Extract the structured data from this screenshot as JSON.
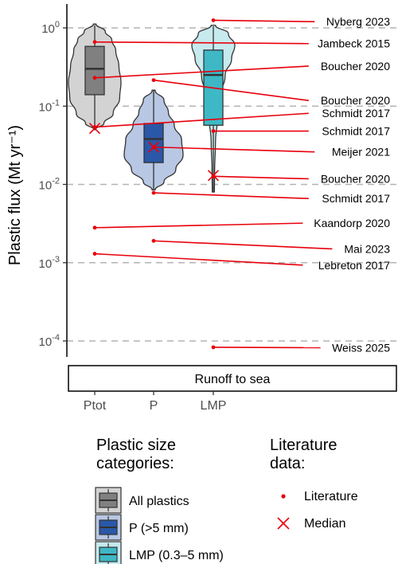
{
  "chart_data": {
    "type": "violin",
    "ylabel": "Plastic flux (Mt yr⁻¹)",
    "yscale": "log",
    "ylim": [
      6.5e-05,
      2.0
    ],
    "yticks": [
      {
        "value": 1,
        "mant": "10",
        "exp": "0"
      },
      {
        "value": 0.1,
        "mant": "10",
        "exp": "-1"
      },
      {
        "value": 0.01,
        "mant": "10",
        "exp": "-2"
      },
      {
        "value": 0.001,
        "mant": "10",
        "exp": "-3"
      },
      {
        "value": 0.0001,
        "mant": "10",
        "exp": "-4"
      }
    ],
    "grid_major_y": true,
    "facet_label": "Runoff to sea",
    "categories": [
      "Ptot",
      "P",
      "LMP"
    ],
    "series": [
      {
        "category": "Ptot",
        "name": "All plastics",
        "color": "#d3d3d3",
        "box_color": "#808080",
        "violin_min": 0.05,
        "violin_max": 1.12,
        "box": {
          "q1": 0.14,
          "median": 0.3,
          "q3": 0.58,
          "whisker_low": 0.05,
          "whisker_high": 1.08
        },
        "lit_median": 0.052
      },
      {
        "category": "P",
        "name": "P (>5 mm)",
        "color": "#b8c7e3",
        "box_color": "#2a58a8",
        "violin_min": 0.0085,
        "violin_max": 0.16,
        "box": {
          "q1": 0.019,
          "median": 0.038,
          "q3": 0.06,
          "whisker_low": 0.0085,
          "whisker_high": 0.16
        },
        "lit_median": 0.03
      },
      {
        "category": "LMP",
        "name": "LMP (0.3–5 mm)",
        "color": "#c6eaee",
        "box_color": "#3eb8c5",
        "violin_min": 0.008,
        "violin_max": 1.08,
        "box": {
          "q1": 0.057,
          "median": 0.25,
          "q3": 0.52,
          "whisker_low": 0.008,
          "whisker_high": 1.05
        },
        "lit_median": 0.013
      }
    ],
    "literature": [
      {
        "category": "LMP",
        "y": 1.25,
        "label": "Nyberg  2023",
        "label_y": 1.2
      },
      {
        "category": "Ptot",
        "y": 0.66,
        "label": "Jambeck  2015",
        "label_y": 0.63
      },
      {
        "category": "Ptot",
        "y": 0.23,
        "label": "Boucher  2020",
        "label_y": 0.325
      },
      {
        "category": "P",
        "y": 0.215,
        "label": "Boucher  2020",
        "label_y": 0.118
      },
      {
        "category": "Ptot",
        "y": 0.054,
        "label": "Schmidt  2017",
        "label_y": 0.081
      },
      {
        "category": "LMP",
        "y": 0.048,
        "label": "Schmidt  2017",
        "label_y": 0.048
      },
      {
        "category": "P",
        "y": 0.03,
        "label": "Meijer  2021",
        "label_y": 0.026
      },
      {
        "category": "LMP",
        "y": 0.0127,
        "label": "Boucher  2020",
        "label_y": 0.0118
      },
      {
        "category": "P",
        "y": 0.0078,
        "label": "Schmidt  2017",
        "label_y": 0.0066
      },
      {
        "category": "Ptot",
        "y": 0.0028,
        "label": "Kaandorp  2020",
        "label_y": 0.0032
      },
      {
        "category": "P",
        "y": 0.0019,
        "label": "Mai  2023",
        "label_y": 0.0015
      },
      {
        "category": "Ptot",
        "y": 0.0013,
        "label": "Lebreton  2017",
        "label_y": 0.00093
      },
      {
        "category": "LMP",
        "y": 8.3e-05,
        "label": "Weiss  2025",
        "label_y": 8.2e-05
      }
    ],
    "legend": {
      "size_title": [
        "Plastic size",
        "categories:"
      ],
      "size_items": [
        "All plastics",
        "P (>5 mm)",
        "LMP (0.3–5 mm)"
      ],
      "lit_title": [
        "Literature",
        "data:"
      ],
      "lit_items": [
        "Literature",
        "Median"
      ],
      "placement": "bottom"
    },
    "point_color": "#e8000b"
  }
}
